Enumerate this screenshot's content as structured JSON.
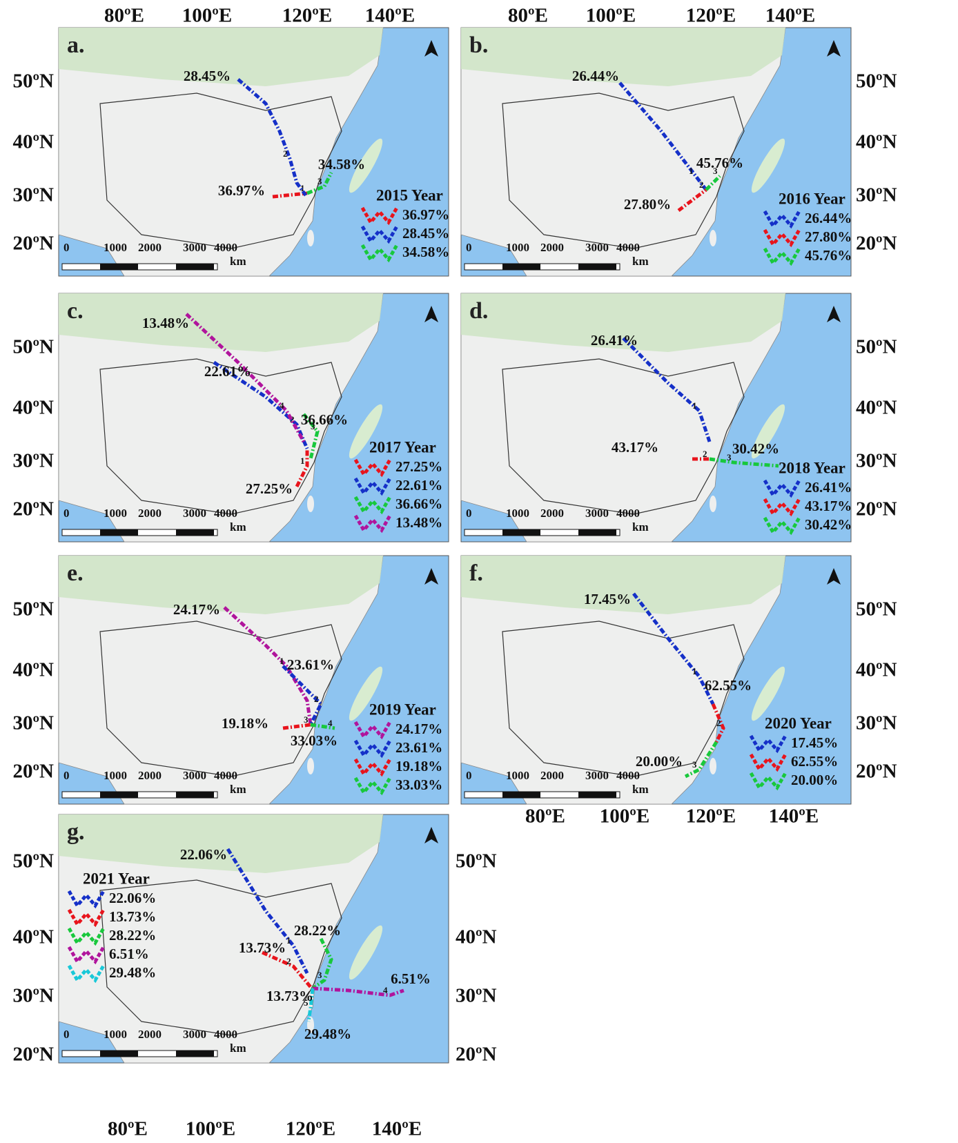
{
  "lon_labels": [
    "80ºE",
    "100ºE",
    "120ºE",
    "140ºE"
  ],
  "lat_labels": [
    "50ºN",
    "40ºN",
    "30ºN",
    "20ºN"
  ],
  "scale_labels": [
    "0",
    "1000",
    "2000",
    "3000",
    "4000",
    "km"
  ],
  "panels": [
    {
      "letter": "a.",
      "year": "2015 Year",
      "route_numbers": [
        "1",
        "2",
        "3"
      ],
      "entries": [
        {
          "color": "#e8141c",
          "label": "36.97%"
        },
        {
          "color": "#1530c8",
          "label": "28.45%"
        },
        {
          "color": "#18c83c",
          "label": "34.58%"
        }
      ]
    },
    {
      "letter": "b.",
      "year": "2016 Year",
      "route_numbers": [
        "1",
        "2",
        "3"
      ],
      "entries": [
        {
          "color": "#1530c8",
          "label": "26.44%"
        },
        {
          "color": "#e8141c",
          "label": "27.80%"
        },
        {
          "color": "#18c83c",
          "label": "45.76%"
        }
      ]
    },
    {
      "letter": "c.",
      "year": "2017 Year",
      "route_numbers": [
        "1",
        "2",
        "3",
        "4"
      ],
      "entries": [
        {
          "color": "#e8141c",
          "label": "27.25%"
        },
        {
          "color": "#1530c8",
          "label": "22.61%"
        },
        {
          "color": "#18c83c",
          "label": "36.66%"
        },
        {
          "color": "#b0149c",
          "label": "13.48%"
        }
      ]
    },
    {
      "letter": "d.",
      "year": "2018 Year",
      "route_numbers": [
        "1",
        "2",
        "3"
      ],
      "entries": [
        {
          "color": "#1530c8",
          "label": "26.41%"
        },
        {
          "color": "#e8141c",
          "label": "43.17%"
        },
        {
          "color": "#18c83c",
          "label": "30.42%"
        }
      ]
    },
    {
      "letter": "e.",
      "year": "2019 Year",
      "route_numbers": [
        "1",
        "2",
        "3",
        "4"
      ],
      "entries": [
        {
          "color": "#b0149c",
          "label": "24.17%"
        },
        {
          "color": "#1530c8",
          "label": "23.61%"
        },
        {
          "color": "#e8141c",
          "label": "19.18%"
        },
        {
          "color": "#18c83c",
          "label": "33.03%"
        }
      ]
    },
    {
      "letter": "f.",
      "year": "2020 Year",
      "route_numbers": [
        "1",
        "2",
        "3"
      ],
      "entries": [
        {
          "color": "#1530c8",
          "label": "17.45%"
        },
        {
          "color": "#e8141c",
          "label": "62.55%"
        },
        {
          "color": "#18c83c",
          "label": "20.00%"
        }
      ]
    },
    {
      "letter": "g.",
      "year": "2021 Year",
      "route_numbers": [
        "1",
        "2",
        "3",
        "4",
        "5"
      ],
      "entries": [
        {
          "color": "#1530c8",
          "label": "22.06%"
        },
        {
          "color": "#e8141c",
          "label": "13.73%"
        },
        {
          "color": "#18c83c",
          "label": "28.22%"
        },
        {
          "color": "#b0149c",
          "label": "6.51%"
        },
        {
          "color": "#18c8d8",
          "label": "29.48%"
        }
      ]
    }
  ]
}
